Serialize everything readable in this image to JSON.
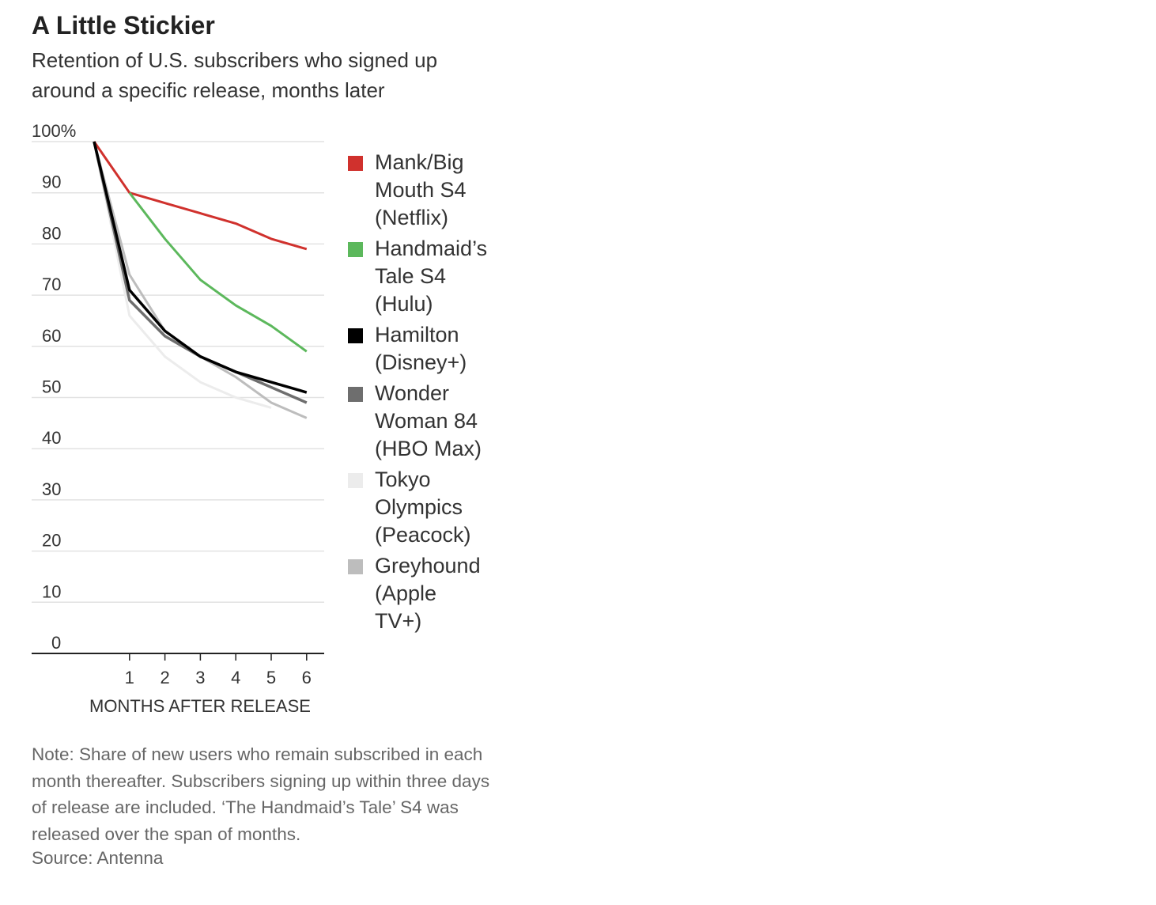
{
  "chart_data": {
    "type": "line",
    "title": "A Little Stickier",
    "subtitle": "Retention of U.S. subscribers who signed up around a specific release, months later",
    "xlabel": "MONTHS AFTER RELEASE",
    "ylabel": "",
    "x": [
      0,
      1,
      2,
      3,
      4,
      5,
      6
    ],
    "xticks": [
      "1",
      "2",
      "3",
      "4",
      "5",
      "6"
    ],
    "yticks": [
      "100%",
      "90",
      "80",
      "70",
      "60",
      "50",
      "40",
      "30",
      "20",
      "10",
      "0"
    ],
    "ylim": [
      0,
      100
    ],
    "xlim": [
      0,
      6
    ],
    "grid": true,
    "legend_position": "right",
    "series": [
      {
        "name": "Mank/Big Mouth S4 (Netflix)",
        "color": "#d0312d",
        "width": 3,
        "values": [
          100,
          90,
          88,
          86,
          84,
          81,
          79
        ]
      },
      {
        "name": "Handmaid's Tale S4 (Hulu)",
        "color": "#5cb85c",
        "width": 3,
        "values": [
          null,
          90,
          81,
          73,
          68,
          64,
          59
        ]
      },
      {
        "name": "Hamilton (Disney+)",
        "color": "#000000",
        "width": 3.5,
        "values": [
          100,
          71,
          63,
          58,
          55,
          53,
          51
        ]
      },
      {
        "name": "Wonder Woman 84 (HBO Max)",
        "color": "#6e6e6e",
        "width": 3.5,
        "values": [
          100,
          69,
          62,
          58,
          55,
          52,
          49
        ]
      },
      {
        "name": "Tokyo Olympics (Peacock)",
        "color": "#ececec",
        "width": 3,
        "values": [
          100,
          66,
          58,
          53,
          50,
          48,
          null
        ]
      },
      {
        "name": "Greyhound (Apple TV+)",
        "color": "#bdbdbd",
        "width": 3,
        "values": [
          100,
          74,
          63,
          58,
          54,
          49,
          46
        ]
      }
    ],
    "legend_labels": [
      [
        "Mank/Big",
        "Mouth S4",
        "(Netflix)"
      ],
      [
        "Handmaid’s",
        "Tale S4",
        "(Hulu)"
      ],
      [
        "Hamilton",
        "(Disney+)"
      ],
      [
        "Wonder",
        "Woman 84",
        "(HBO Max)"
      ],
      [
        "Tokyo",
        "Olympics",
        "(Peacock)"
      ],
      [
        "Greyhound",
        "(Apple",
        "TV+)"
      ]
    ]
  },
  "note": "Note: Share of new users who remain subscribed in each month thereafter. Subscribers signing up within three days of release are included. ‘The Handmaid’s Tale’ S4 was released over the span of months.",
  "source": "Source: Antenna"
}
